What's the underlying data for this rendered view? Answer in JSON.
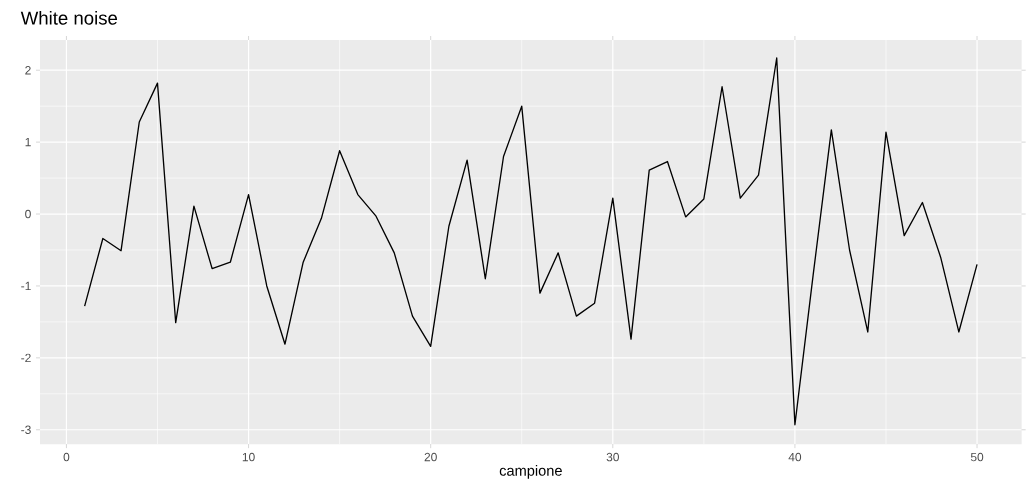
{
  "chart_data": {
    "type": "line",
    "title": "White noise",
    "xlabel": "campione",
    "x": [
      1,
      2,
      3,
      4,
      5,
      6,
      7,
      8,
      9,
      10,
      11,
      12,
      13,
      14,
      15,
      16,
      17,
      18,
      19,
      20,
      21,
      22,
      23,
      24,
      25,
      26,
      27,
      28,
      29,
      30,
      31,
      32,
      33,
      34,
      35,
      36,
      37,
      38,
      39,
      40,
      41,
      42,
      43,
      44,
      45,
      46,
      47,
      48,
      49,
      50
    ],
    "series": [
      {
        "color": "#000000",
        "values": [
          -1.28,
          -0.34,
          -0.51,
          1.28,
          1.82,
          -1.51,
          0.11,
          -0.76,
          -0.67,
          0.27,
          -1.0,
          -1.81,
          -0.67,
          -0.06,
          0.88,
          0.27,
          -0.03,
          -0.54,
          -1.42,
          -1.84,
          -0.17,
          0.75,
          -0.9,
          0.8,
          1.5,
          -1.1,
          -0.54,
          -1.42,
          -1.24,
          0.22,
          -1.74,
          0.61,
          0.73,
          -0.04,
          0.21,
          1.77,
          0.22,
          0.54,
          2.17,
          -2.93,
          -0.85,
          1.17,
          -0.5,
          -1.64,
          1.14,
          -0.3,
          0.16,
          -0.6,
          -1.64,
          -0.7
        ]
      }
    ],
    "xlim": [
      -1.45,
      52.45
    ],
    "ylim": [
      -3.2,
      2.42
    ],
    "xticks": [
      0,
      10,
      20,
      30,
      40,
      50
    ],
    "yticks": [
      -3,
      -2,
      -1,
      0,
      1,
      2
    ],
    "grid": true,
    "marker": "none",
    "line_style": "solid"
  }
}
